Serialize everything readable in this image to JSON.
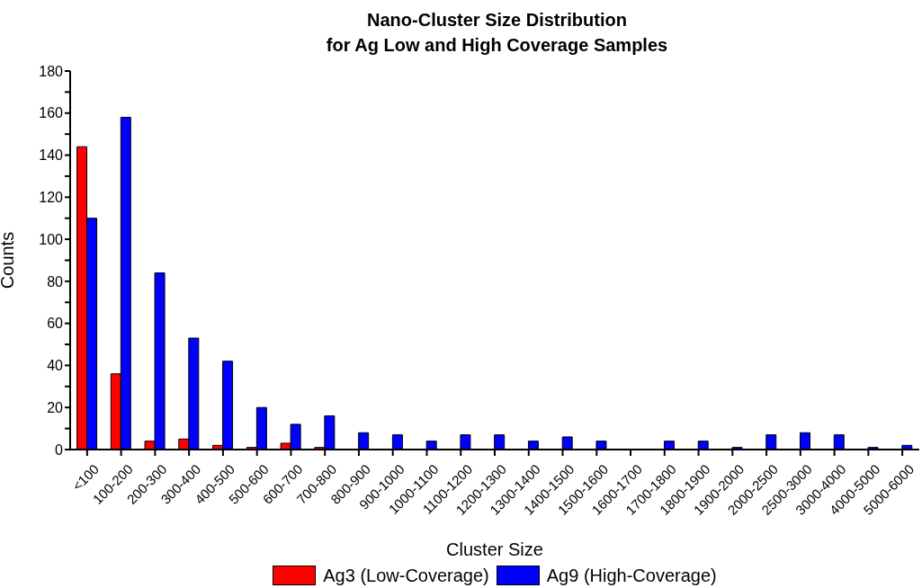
{
  "chart_data": {
    "type": "bar",
    "title": "Nano-Cluster Size Distribution\nfor Ag Low and High Coverage Samples",
    "xlabel": "Cluster Size",
    "ylabel": "Counts",
    "categories": [
      "<100",
      "100-200",
      "200-300",
      "300-400",
      "400-500",
      "500-600",
      "600-700",
      "700-800",
      "800-900",
      "900-1000",
      "1000-1100",
      "1100-1200",
      "1200-1300",
      "1300-1400",
      "1400-1500",
      "1500-1600",
      "1600-1700",
      "1700-1800",
      "1800-1900",
      "1900-2000",
      "2000-2500",
      "2500-3000",
      "3000-4000",
      "4000-5000",
      "5000-6000"
    ],
    "series": [
      {
        "name": "Ag3 (Low-Coverage)",
        "color": "#ff0000",
        "values": [
          144,
          36,
          4,
          5,
          2,
          1,
          3,
          1,
          0,
          0,
          0,
          0,
          0,
          0,
          0,
          0,
          0,
          0,
          0,
          0,
          0,
          0,
          0,
          0,
          0
        ]
      },
      {
        "name": "Ag9 (High-Coverage)",
        "color": "#0000ff",
        "values": [
          110,
          158,
          84,
          53,
          42,
          20,
          12,
          16,
          8,
          7,
          4,
          7,
          7,
          4,
          6,
          4,
          0,
          4,
          4,
          1,
          7,
          8,
          7,
          1,
          2
        ]
      }
    ],
    "ylim": [
      0,
      180
    ],
    "yticks": [
      0,
      {
        "value": 10,
        "label": null
      },
      20,
      {
        "value": 30,
        "label": null
      },
      40,
      {
        "value": 50,
        "label": null
      },
      60,
      {
        "value": 70,
        "label": null
      },
      80,
      {
        "value": 90,
        "label": null
      },
      100,
      {
        "value": 110,
        "label": null
      },
      120,
      {
        "value": 130,
        "label": null
      },
      140,
      {
        "value": 150,
        "label": null
      },
      160,
      {
        "value": 170,
        "label": null
      },
      180
    ],
    "grid": false,
    "legend": "bottom"
  }
}
